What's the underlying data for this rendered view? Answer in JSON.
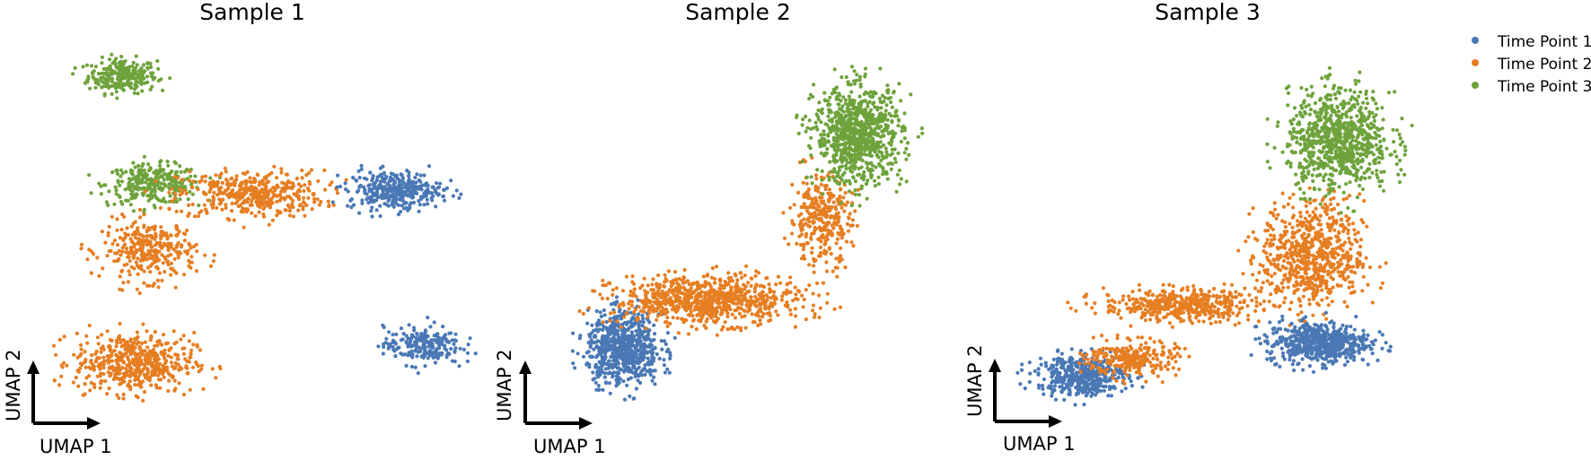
{
  "colors": {
    "time_point_1": "#4a78b5",
    "time_point_2": "#e67e22",
    "time_point_3": "#6ea33c"
  },
  "legend": {
    "placement": "top-right",
    "items": [
      {
        "label": "Time Point 1",
        "color": "#4a78b5"
      },
      {
        "label": "Time Point 2",
        "color": "#e67e22"
      },
      {
        "label": "Time Point 3",
        "color": "#6ea33c"
      }
    ]
  },
  "chart_data": [
    {
      "type": "scatter",
      "title": "Sample 1",
      "xlabel": "UMAP 1",
      "ylabel": "UMAP 2",
      "grid": false,
      "clusters": [
        {
          "series": "Time Point 3",
          "center": [
            0.7,
            8.35
          ],
          "spread": [
            0.4,
            0.4
          ],
          "n": 260
        },
        {
          "series": "Time Point 3",
          "center": [
            1.1,
            5.55
          ],
          "spread": [
            0.55,
            0.45
          ],
          "n": 300
        },
        {
          "series": "Time Point 2",
          "center": [
            2.35,
            5.3
          ],
          "spread": [
            0.85,
            0.55
          ],
          "n": 420
        },
        {
          "series": "Time Point 2",
          "center": [
            1.05,
            3.85
          ],
          "spread": [
            0.55,
            0.7
          ],
          "n": 320
        },
        {
          "series": "Time Point 2",
          "center": [
            0.85,
            0.95
          ],
          "spread": [
            0.7,
            0.7
          ],
          "n": 520
        },
        {
          "series": "Time Point 1",
          "center": [
            4.2,
            5.4
          ],
          "spread": [
            0.55,
            0.45
          ],
          "n": 340
        },
        {
          "series": "Time Point 1",
          "center": [
            4.55,
            1.4
          ],
          "spread": [
            0.45,
            0.45
          ],
          "n": 220
        }
      ]
    },
    {
      "type": "scatter",
      "title": "Sample 2",
      "xlabel": "UMAP 1",
      "ylabel": "UMAP 2",
      "grid": false,
      "clusters": [
        {
          "series": "Time Point 1",
          "center": [
            0.6,
            1.0
          ],
          "spread": [
            0.7,
            0.8
          ],
          "n": 700
        },
        {
          "series": "Time Point 2",
          "center": [
            2.4,
            2.2
          ],
          "spread": [
            1.8,
            0.55
          ],
          "n": 800
        },
        {
          "series": "Time Point 2",
          "center": [
            4.8,
            4.2
          ],
          "spread": [
            0.6,
            1.0
          ],
          "n": 320
        },
        {
          "series": "Time Point 3",
          "center": [
            5.6,
            6.3
          ],
          "spread": [
            0.85,
            1.1
          ],
          "n": 850
        }
      ]
    },
    {
      "type": "scatter",
      "title": "Sample 3",
      "xlabel": "UMAP 1",
      "ylabel": "UMAP 2",
      "grid": false,
      "clusters": [
        {
          "series": "Time Point 1",
          "center": [
            0.75,
            0.9
          ],
          "spread": [
            0.7,
            0.45
          ],
          "n": 460
        },
        {
          "series": "Time Point 2",
          "center": [
            1.6,
            1.3
          ],
          "spread": [
            0.7,
            0.4
          ],
          "n": 260
        },
        {
          "series": "Time Point 2",
          "center": [
            2.4,
            2.6
          ],
          "spread": [
            1.2,
            0.35
          ],
          "n": 460
        },
        {
          "series": "Time Point 2",
          "center": [
            4.7,
            3.8
          ],
          "spread": [
            0.8,
            1.2
          ],
          "n": 700
        },
        {
          "series": "Time Point 1",
          "center": [
            4.8,
            1.7
          ],
          "spread": [
            0.8,
            0.45
          ],
          "n": 600
        },
        {
          "series": "Time Point 3",
          "center": [
            5.15,
            6.6
          ],
          "spread": [
            0.8,
            1.1
          ],
          "n": 800
        }
      ]
    }
  ]
}
